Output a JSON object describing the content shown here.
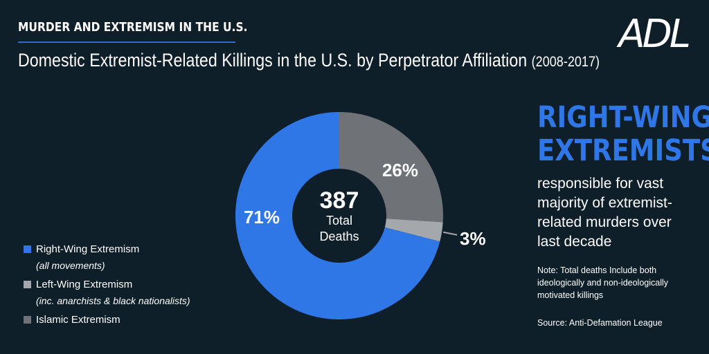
{
  "header": {
    "kicker": "MURDER AND EXTREMISM IN THE U.S.",
    "title": "Domestic Extremist-Related Killings in the U.S. by Perpetrator Affiliation",
    "title_range": "(2008-2017)",
    "logo": "ADL"
  },
  "chart_data": {
    "type": "pie",
    "donut": true,
    "center_value": "387",
    "center_label_line1": "Total",
    "center_label_line2": "Deaths",
    "slices": [
      {
        "name": "Right-Wing Extremism",
        "value": 71,
        "label": "71%",
        "color": "#2f76e6"
      },
      {
        "name": "Islamic Extremism",
        "value": 26,
        "label": "26%",
        "color": "#6f7377"
      },
      {
        "name": "Left-Wing Extremism",
        "value": 3,
        "label": "3%",
        "color": "#a4a8ac"
      }
    ],
    "legend": [
      {
        "label": "Right-Wing Extremism",
        "sub": "(all movements)",
        "color": "#2f76e6"
      },
      {
        "label": "Left-Wing Extremism",
        "sub": "(inc. anarchists & black nationalists)",
        "color": "#a4a8ac"
      },
      {
        "label": "Islamic Extremism",
        "sub": "",
        "color": "#6f7377"
      }
    ]
  },
  "sidebar": {
    "headline_line1": "RIGHT-WING",
    "headline_line2": "EXTREMISTS",
    "subhead": "responsible for vast majority of extremist-related murders over last decade",
    "note": "Note: Total deaths Include both ideologically and non-ideologically motivated killings",
    "source": "Source: Anti-Defamation League"
  },
  "colors": {
    "background": "#0f1f2a",
    "accent": "#2f76e6"
  }
}
